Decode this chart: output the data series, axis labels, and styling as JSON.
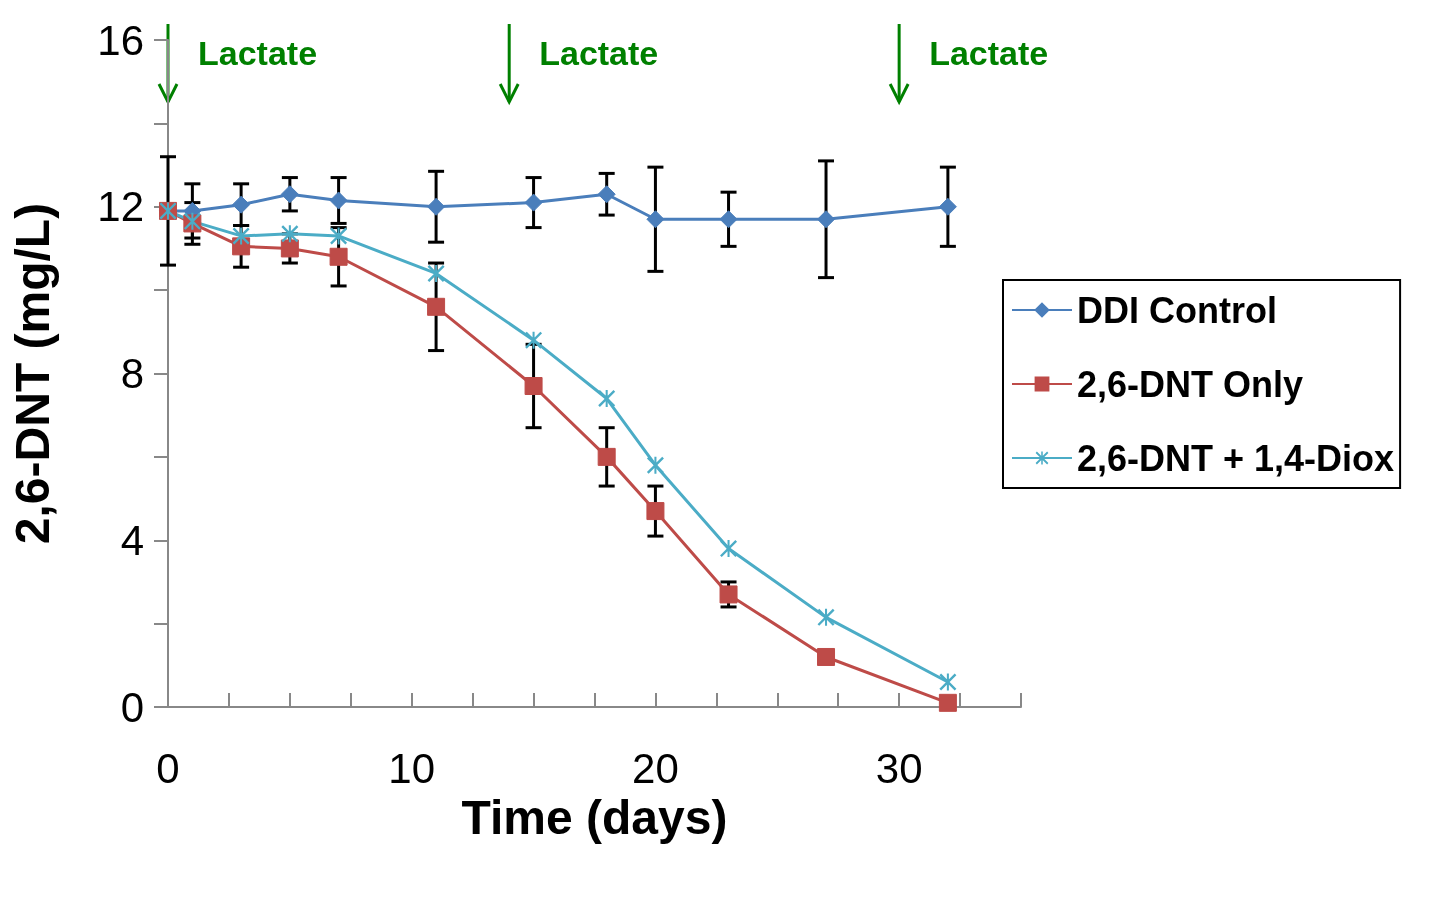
{
  "chart_data": {
    "type": "line",
    "xlabel": "Time (days)",
    "ylabel": "2,6-DNT (mg/L)",
    "xlim": [
      0,
      35
    ],
    "xticks": [
      0,
      {
        "value": 2.5,
        "label": null
      },
      {
        "value": 5,
        "label": null
      },
      {
        "value": 7.5,
        "label": null
      },
      10,
      {
        "value": 12.5,
        "label": null
      },
      {
        "value": 15,
        "label": null
      },
      {
        "value": 17.5,
        "label": null
      },
      20,
      {
        "value": 22.5,
        "label": null
      },
      {
        "value": 25,
        "label": null
      },
      {
        "value": 27.5,
        "label": null
      },
      30,
      {
        "value": 32.5,
        "label": null
      },
      {
        "value": 35,
        "label": null
      }
    ],
    "ylim": [
      0,
      16
    ],
    "yticks": [
      0,
      {
        "value": 2,
        "label": null
      },
      4,
      {
        "value": 6,
        "label": null
      },
      8,
      {
        "value": 10,
        "label": null
      },
      12,
      {
        "value": 14,
        "label": null
      },
      16
    ],
    "x": [
      0,
      1,
      3,
      5,
      7,
      11,
      15,
      18,
      20,
      23,
      27,
      32
    ],
    "series": [
      {
        "name": "DDI Control",
        "color": "#4a7ebb",
        "marker": "diamond",
        "values": [
          11.9,
          11.9,
          12.05,
          12.3,
          12.15,
          12.0,
          12.1,
          12.3,
          11.7,
          11.7,
          11.7,
          12.0
        ],
        "errors": [
          1.3,
          0.65,
          0.5,
          0.4,
          0.55,
          0.85,
          0.6,
          0.5,
          1.25,
          0.65,
          1.4,
          0.95
        ]
      },
      {
        "name": "2,6-DNT Only",
        "color": "#be4b48",
        "marker": "square",
        "values": [
          11.9,
          11.6,
          11.05,
          11.0,
          10.8,
          9.6,
          7.7,
          6.0,
          4.7,
          2.7,
          1.2,
          0.1
        ],
        "errors": [
          null,
          0.5,
          0.5,
          0.35,
          0.7,
          1.05,
          1.0,
          0.7,
          0.6,
          0.3,
          null,
          null
        ]
      },
      {
        "name": "2,6-DNT + 1,4-Diox",
        "color": "#4bacc6",
        "marker": "cross",
        "values": [
          11.9,
          11.65,
          11.3,
          11.35,
          11.3,
          10.4,
          8.8,
          7.4,
          5.8,
          3.8,
          2.15,
          0.6
        ]
      }
    ],
    "ref_lines": [
      {
        "axis": "x",
        "value": 0,
        "label": "Lactate",
        "color": "#008000"
      },
      {
        "axis": "x",
        "value": 14,
        "label": "Lactate",
        "color": "#008000"
      },
      {
        "axis": "x",
        "value": 30,
        "label": "Lactate",
        "color": "#008000"
      }
    ],
    "legend": "right",
    "grid": false,
    "line_style": "solid"
  }
}
